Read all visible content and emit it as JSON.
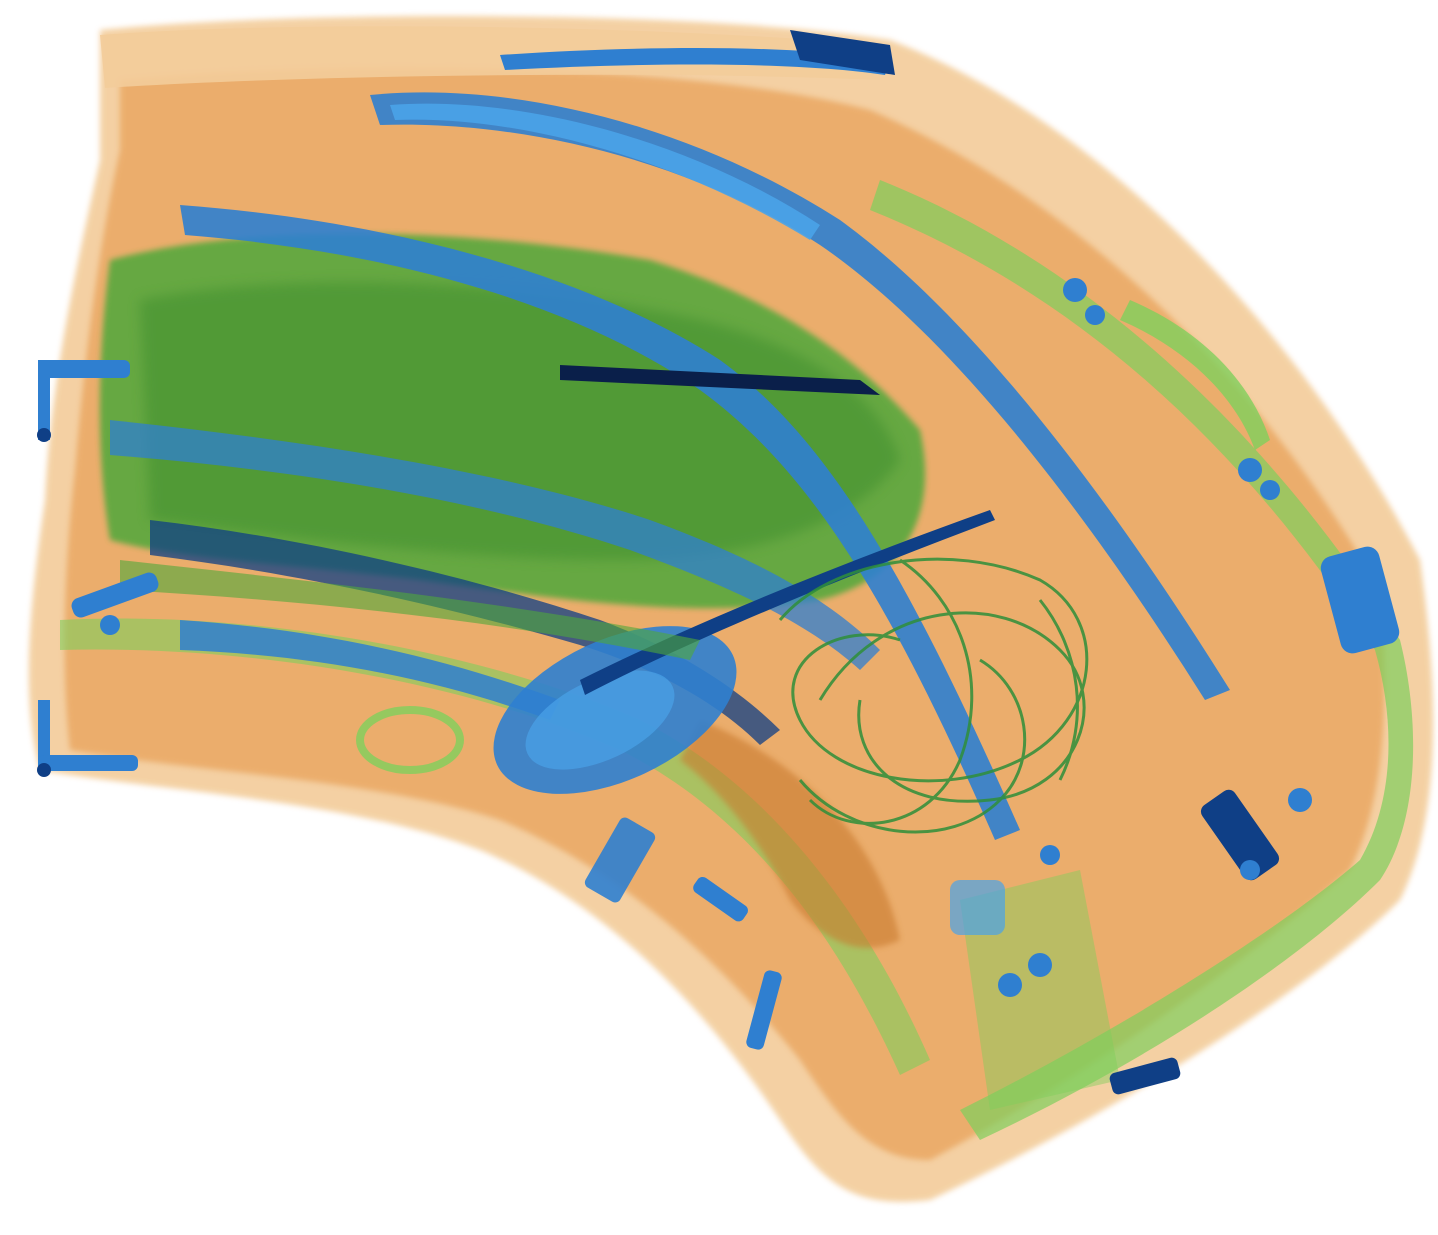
{
  "scan": {
    "subject": "x-ray-baggage-scan",
    "palette": {
      "background": "#ffffff",
      "organic": "#e8a25a",
      "organic_light": "#f3cc9a",
      "organic_dark": "#c97a2e",
      "mixed": "#4fa83a",
      "mixed_light": "#7fcf5c",
      "metal": "#2f7fd0",
      "metal_light": "#4aa3e8",
      "metal_dark": "#0f3f86",
      "dense": "#0a1f4a"
    }
  }
}
